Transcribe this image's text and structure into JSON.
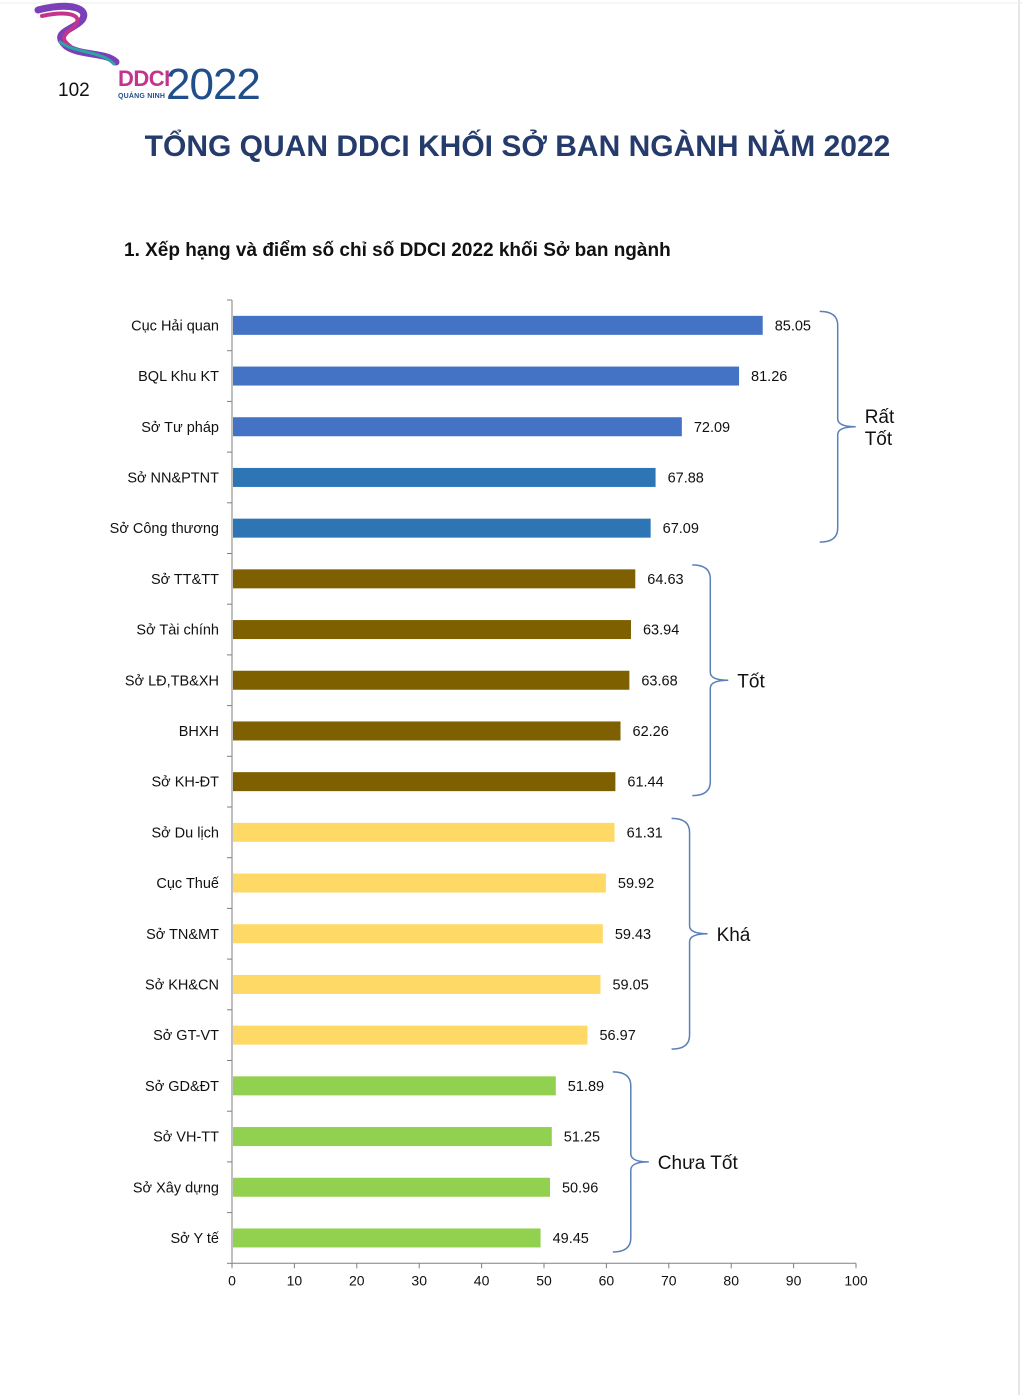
{
  "page": {
    "number": "102",
    "title": "TỔNG QUAN DDCI KHỐI SỞ BAN NGÀNH NĂM 2022"
  },
  "logo": {
    "brand": "DDCI",
    "subtitle": "QUẢNG NINH",
    "year": "2022",
    "colors": {
      "ribbon": "#7b3fb8",
      "brand": "#c4348c",
      "year": "#1f4e8a"
    }
  },
  "section": {
    "heading": "1. Xếp hạng và điểm số chỉ số DDCI 2022 khối Sở ban ngành"
  },
  "chart_data": {
    "type": "bar",
    "orientation": "horizontal",
    "xlim": [
      0,
      100
    ],
    "xticks": [
      0,
      10,
      20,
      30,
      40,
      50,
      60,
      70,
      80,
      90,
      100
    ],
    "grid": false,
    "categories": [
      "Cục Hải quan",
      "BQL Khu KT",
      "Sở Tư pháp",
      "Sở NN&PTNT",
      "Sở Công thương",
      "Sở TT&TT",
      "Sở Tài chính",
      "Sở LĐ,TB&XH",
      "BHXH",
      "Sở KH-ĐT",
      "Sở Du lịch",
      "Cục Thuế",
      "Sở TN&MT",
      "Sở KH&CN",
      "Sở GT-VT",
      "Sở GD&ĐT",
      "Sở VH-TT",
      "Sở Xây dựng",
      "Sở Y tế"
    ],
    "values": [
      85.05,
      81.26,
      72.09,
      67.88,
      67.09,
      64.63,
      63.94,
      63.68,
      62.26,
      61.44,
      61.31,
      59.92,
      59.43,
      59.05,
      56.97,
      51.89,
      51.25,
      50.96,
      49.45
    ],
    "value_labels": [
      "85.05",
      "81.26",
      "72.09",
      "67.88",
      "67.09",
      "64.63",
      "63.94",
      "63.68",
      "62.26",
      "61.44",
      "61.31",
      "59.92",
      "59.43",
      "59.05",
      "56.97",
      "51.89",
      "51.25",
      "50.96",
      "49.45"
    ],
    "bar_colors": [
      "#4472c4",
      "#4472c4",
      "#4472c4",
      "#2e75b6",
      "#2e75b6",
      "#7f6000",
      "#7f6000",
      "#7f6000",
      "#7f6000",
      "#7f6000",
      "#ffd966",
      "#ffd966",
      "#ffd966",
      "#ffd966",
      "#ffd966",
      "#92d050",
      "#92d050",
      "#92d050",
      "#92d050"
    ],
    "groups": [
      {
        "label_lines": [
          "Rất",
          "Tốt"
        ],
        "from": 0,
        "to": 4
      },
      {
        "label_lines": [
          "Tốt"
        ],
        "from": 5,
        "to": 9
      },
      {
        "label_lines": [
          "Khá"
        ],
        "from": 10,
        "to": 14
      },
      {
        "label_lines": [
          "Chưa Tốt"
        ],
        "from": 15,
        "to": 18
      }
    ],
    "bracket_color": "#5b7fb8"
  }
}
